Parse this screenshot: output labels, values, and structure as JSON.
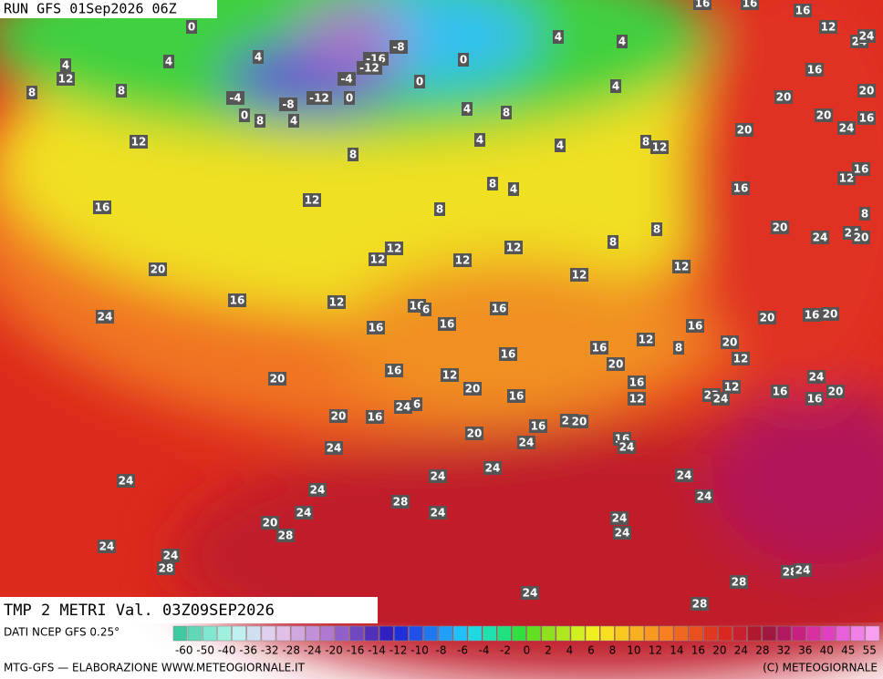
{
  "header": {
    "run": "RUN GFS 01Sep2026 06Z",
    "field": "TMP 2 METRI Val. 03Z09SEP2026"
  },
  "map": {
    "labels": [
      0,
      4,
      12,
      8,
      4,
      8,
      4,
      -4,
      0,
      8,
      -8,
      4,
      -12,
      0,
      -4,
      -16,
      -12,
      -8,
      0,
      0,
      4,
      4,
      4,
      4,
      8,
      12,
      8,
      4,
      4,
      8,
      12,
      16,
      12,
      8,
      4,
      8,
      8,
      8,
      12,
      12,
      12,
      12,
      12,
      12,
      20,
      16,
      12,
      16,
      6,
      16,
      16,
      16,
      24,
      16,
      16,
      12,
      8,
      16,
      20,
      12,
      20,
      16,
      12,
      20,
      20,
      16,
      16,
      12,
      22,
      24,
      12,
      16,
      16,
      20,
      24,
      20,
      16,
      20,
      20,
      16,
      24,
      6,
      20,
      16,
      22,
      20,
      24,
      24,
      16,
      24,
      24,
      24,
      24,
      24,
      24,
      24,
      28,
      24,
      24,
      20,
      28,
      24,
      24,
      24,
      24,
      28,
      28,
      28,
      24,
      24,
      28,
      20,
      16,
      20,
      20,
      20,
      24,
      16,
      16,
      12,
      16,
      20,
      24,
      24,
      20,
      8,
      12,
      24,
      24,
      16,
      16,
      16
    ]
  },
  "legend": {
    "source": "DATI NCEP GFS 0.25°",
    "ticks": [
      -60,
      -50,
      -40,
      -36,
      -32,
      -28,
      -24,
      -20,
      -16,
      -14,
      -12,
      -10,
      -8,
      -6,
      -4,
      -2,
      0,
      2,
      4,
      6,
      8,
      10,
      12,
      14,
      16,
      20,
      24,
      28,
      32,
      36,
      40,
      45,
      55
    ],
    "colors": [
      "#40c8a0",
      "#60d8b8",
      "#80e8d0",
      "#a0f0e0",
      "#c0f0f0",
      "#d0e0f0",
      "#e0d0f0",
      "#e0c0e8",
      "#d0a8e0",
      "#c090d8",
      "#b078d0",
      "#9060c8",
      "#7048c0",
      "#5030b8",
      "#3020c0",
      "#2030d8",
      "#2050e8",
      "#2078f0",
      "#20a0f8",
      "#20c0f8",
      "#20d8e0",
      "#20e0b0",
      "#20e080",
      "#30e040",
      "#60e020",
      "#90e020",
      "#b0e820",
      "#d0f020",
      "#f0f020",
      "#f8e020",
      "#f8c820",
      "#f8b020",
      "#f89820",
      "#f88020",
      "#f06820",
      "#e85020",
      "#e03820",
      "#d82820",
      "#c82030",
      "#b01830",
      "#a01840",
      "#b01860",
      "#c82080",
      "#d830a0",
      "#e040c0",
      "#e860d8",
      "#f080e8",
      "#f8a0f0"
    ]
  },
  "footer": {
    "credit": "MTG-GFS — ELABORAZIONE WWW.METEOGIORNALE.IT",
    "copyright": "(C) METEOGIORNALE"
  }
}
